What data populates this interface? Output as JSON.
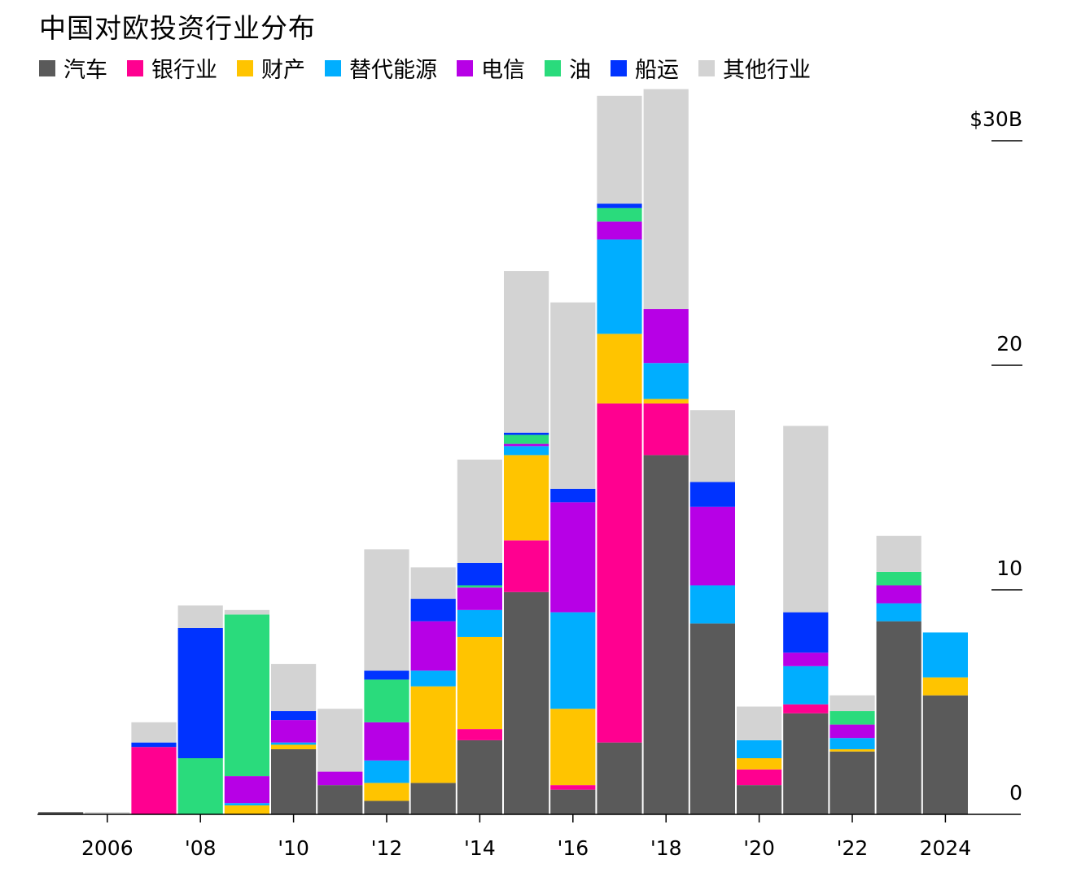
{
  "chart_data": {
    "type": "bar",
    "stacked": true,
    "title": "中国对欧投资行业分布",
    "legend_position": "top-left",
    "categories": [
      "2005",
      "2006",
      "2007",
      "2008",
      "2009",
      "2010",
      "2011",
      "2012",
      "2013",
      "2014",
      "2015",
      "2016",
      "2017",
      "2018",
      "2019",
      "2020",
      "2021",
      "2022",
      "2023",
      "2024"
    ],
    "x_tick_labels": [
      {
        "category": "2006",
        "label": "2006"
      },
      {
        "category": "2008",
        "label": "'08"
      },
      {
        "category": "2010",
        "label": "'10"
      },
      {
        "category": "2012",
        "label": "'12"
      },
      {
        "category": "2014",
        "label": "'14"
      },
      {
        "category": "2016",
        "label": "'16"
      },
      {
        "category": "2018",
        "label": "'18"
      },
      {
        "category": "2020",
        "label": "'20"
      },
      {
        "category": "2022",
        "label": "'22"
      },
      {
        "category": "2024",
        "label": "2024"
      }
    ],
    "y_ticks": [
      {
        "value": 0,
        "label": "0"
      },
      {
        "value": 10,
        "label": "10"
      },
      {
        "value": 20,
        "label": "20"
      },
      {
        "value": 30,
        "label": "$30B"
      }
    ],
    "ylim": [
      0,
      32
    ],
    "grid": false,
    "series": [
      {
        "name": "汽车",
        "color": "#5a5a5a",
        "values": [
          0.1,
          0.0,
          0.0,
          0.0,
          0.0,
          2.9,
          1.3,
          0.6,
          1.4,
          3.3,
          9.9,
          1.1,
          3.2,
          16.0,
          8.5,
          1.3,
          4.5,
          2.8,
          8.6,
          5.3
        ]
      },
      {
        "name": "银行业",
        "color": "#ff0090",
        "values": [
          0,
          0,
          3.0,
          0,
          0,
          0,
          0,
          0,
          0,
          0.5,
          2.3,
          0.2,
          15.1,
          2.3,
          0,
          0.7,
          0.4,
          0,
          0,
          0
        ]
      },
      {
        "name": "财产",
        "color": "#ffc400",
        "values": [
          0,
          0,
          0,
          0,
          0.4,
          0.2,
          0,
          0.8,
          4.3,
          4.1,
          3.8,
          3.4,
          3.1,
          0.2,
          0,
          0.5,
          0,
          0.1,
          0,
          0.8
        ]
      },
      {
        "name": "替代能源",
        "color": "#00aeff",
        "values": [
          0,
          0,
          0,
          0,
          0.1,
          0.1,
          0,
          1.0,
          0.7,
          1.2,
          0.4,
          4.3,
          4.2,
          1.6,
          1.7,
          0.8,
          1.7,
          0.5,
          0.8,
          2.0
        ]
      },
      {
        "name": "电信",
        "color": "#b700e6",
        "values": [
          0,
          0,
          0,
          0,
          1.2,
          1.0,
          0.6,
          1.7,
          2.2,
          1.0,
          0.1,
          4.9,
          0.8,
          2.4,
          3.5,
          0,
          0.6,
          0.6,
          0.8,
          0
        ]
      },
      {
        "name": "油",
        "color": "#2adb7c",
        "values": [
          0,
          0,
          0,
          2.5,
          7.2,
          0,
          0,
          1.9,
          0,
          0.1,
          0.4,
          0,
          0.6,
          0,
          0,
          0,
          0,
          0.6,
          0.6,
          0
        ]
      },
      {
        "name": "船运",
        "color": "#0033ff",
        "values": [
          0,
          0,
          0.2,
          5.8,
          0,
          0.4,
          0,
          0.4,
          1.0,
          1.0,
          0.1,
          0.6,
          0.2,
          0,
          1.1,
          0,
          1.8,
          0,
          0,
          0
        ]
      },
      {
        "name": "其他行业",
        "color": "#d3d3d3",
        "values": [
          0,
          0.1,
          0.9,
          1.0,
          0.2,
          2.1,
          2.8,
          5.4,
          1.4,
          4.6,
          7.2,
          8.3,
          4.8,
          9.8,
          3.2,
          1.5,
          8.3,
          0.7,
          1.6,
          0
        ]
      }
    ]
  }
}
